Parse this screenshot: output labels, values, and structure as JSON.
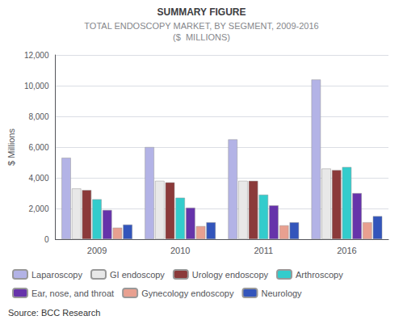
{
  "chart_data": {
    "type": "bar",
    "title": "SUMMARY FIGURE",
    "subtitle": "TOTAL ENDOSCOPY MARKET, BY SEGMENT, 2009-2016\n($  MILLIONS)",
    "ylabel": "$ Millions",
    "categories": [
      "2009",
      "2010",
      "2011",
      "2016"
    ],
    "series": [
      {
        "name": "Laparoscopy",
        "color": "#b3b3e6",
        "values": [
          5300,
          6000,
          6500,
          10400
        ]
      },
      {
        "name": "GI endoscopy",
        "color": "#e8e8e8",
        "values": [
          3300,
          3800,
          3800,
          4600
        ]
      },
      {
        "name": "Urology endoscopy",
        "color": "#8b3a3a",
        "values": [
          3200,
          3700,
          3800,
          4500
        ]
      },
      {
        "name": "Arthroscopy",
        "color": "#33cccc",
        "values": [
          2600,
          2700,
          2900,
          4700
        ]
      },
      {
        "name": "Ear, nose, and throat",
        "color": "#6633aa",
        "values": [
          1900,
          2050,
          2200,
          3000
        ]
      },
      {
        "name": "Gynecology endoscopy",
        "color": "#e8a090",
        "values": [
          750,
          850,
          900,
          1100
        ]
      },
      {
        "name": "Neurology",
        "color": "#3355bb",
        "values": [
          950,
          1100,
          1100,
          1500
        ]
      }
    ],
    "ylim": [
      0,
      12000
    ],
    "yticks": [
      0,
      {
        "value": 2000,
        "label": "2,000"
      },
      {
        "value": 4000,
        "label": "4,000"
      },
      {
        "value": 6000,
        "label": "6,000"
      },
      {
        "value": 8000,
        "label": "8,000"
      },
      {
        "value": 10000,
        "label": "10,000"
      },
      {
        "value": 12000,
        "label": "12,000"
      }
    ],
    "grid": true,
    "legend": "bottom",
    "annotations": [
      "Source: BCC Research"
    ]
  }
}
